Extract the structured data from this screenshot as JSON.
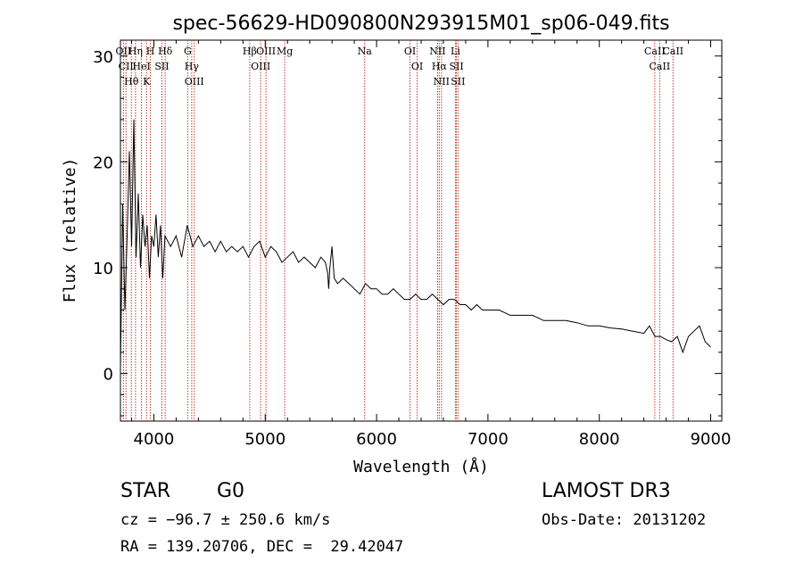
{
  "chart_data": {
    "type": "line",
    "title": "spec-56629-HD090800N293915M01_sp06-049.fits",
    "xlabel": "Wavelength (Å)",
    "ylabel": "Flux (relative)",
    "xlim": [
      3700,
      9100
    ],
    "ylim": [
      -4.5,
      31.5
    ],
    "xticks": [
      4000,
      5000,
      6000,
      7000,
      8000,
      9000
    ],
    "yticks": [
      0,
      10,
      20,
      30
    ],
    "grid": false,
    "series": [
      {
        "name": "spectrum",
        "x": [
          3700,
          3720,
          3740,
          3760,
          3780,
          3800,
          3820,
          3840,
          3860,
          3880,
          3900,
          3920,
          3940,
          3960,
          3980,
          4000,
          4020,
          4040,
          4060,
          4080,
          4100,
          4150,
          4200,
          4250,
          4300,
          4350,
          4400,
          4450,
          4500,
          4550,
          4600,
          4650,
          4700,
          4750,
          4800,
          4850,
          4900,
          4950,
          5000,
          5050,
          5100,
          5150,
          5200,
          5250,
          5300,
          5350,
          5400,
          5450,
          5500,
          5540,
          5560,
          5570,
          5580,
          5600,
          5620,
          5650,
          5700,
          5750,
          5800,
          5850,
          5900,
          5950,
          6000,
          6050,
          6100,
          6150,
          6200,
          6250,
          6300,
          6350,
          6400,
          6450,
          6500,
          6550,
          6600,
          6650,
          6700,
          6750,
          6800,
          6850,
          6900,
          6950,
          7000,
          7100,
          7200,
          7300,
          7400,
          7500,
          7600,
          7700,
          7800,
          7900,
          8000,
          8100,
          8200,
          8300,
          8400,
          8450,
          8500,
          8550,
          8600,
          8650,
          8700,
          8750,
          8800,
          8850,
          8900,
          8950,
          9000
        ],
        "y": [
          0.5,
          16,
          6,
          13,
          21,
          12,
          24,
          11,
          17,
          10,
          15,
          12,
          14,
          9,
          13,
          12,
          15,
          11,
          14,
          9,
          13,
          12,
          13,
          11,
          14,
          12,
          13,
          12,
          12.5,
          11.5,
          12.5,
          11.5,
          12,
          11.5,
          12,
          11,
          12,
          12.5,
          11,
          12,
          11.5,
          10.5,
          11,
          11.5,
          10.5,
          11,
          10.5,
          10,
          11,
          10.5,
          9.5,
          8,
          10,
          12,
          9,
          8.5,
          9,
          8.5,
          8,
          7.5,
          8.5,
          8,
          8,
          7.5,
          7.5,
          8,
          7.5,
          7,
          7,
          7.5,
          7,
          7,
          7.5,
          7,
          6.5,
          7,
          7,
          6.5,
          6.5,
          6,
          6.5,
          6,
          6,
          6,
          5.5,
          5.5,
          5.5,
          5,
          5,
          5,
          4.8,
          4.5,
          4.5,
          4.3,
          4.2,
          4,
          3.8,
          4.5,
          3.5,
          3.5,
          3.2,
          3,
          3.5,
          2,
          3.5,
          4,
          4.5,
          3,
          2.5
        ]
      }
    ],
    "line_markers": [
      {
        "label": "Hβ",
        "x": 4861
      },
      {
        "label": "OIII",
        "x": 4959
      },
      {
        "label": "OIII",
        "x": 5007
      },
      {
        "label": "Mg",
        "x": 5175
      },
      {
        "label": "Na",
        "x": 5893
      },
      {
        "label": "OI",
        "x": 6300
      },
      {
        "label": "OI",
        "x": 6364
      },
      {
        "label": "NII",
        "x": 6548
      },
      {
        "label": "Hα",
        "x": 6563
      },
      {
        "label": "NII",
        "x": 6583
      },
      {
        "label": "Li",
        "x": 6708
      },
      {
        "label": "SII",
        "x": 6717
      },
      {
        "label": "SII",
        "x": 6731
      },
      {
        "label": "CaII",
        "x": 8498
      },
      {
        "label": "CaII",
        "x": 8542
      },
      {
        "label": "CaII",
        "x": 8662
      },
      {
        "label": "G",
        "x": 4304
      },
      {
        "label": "Hγ",
        "x": 4340
      },
      {
        "label": "OIII",
        "x": 4363
      },
      {
        "label": "Hδ",
        "x": 4102
      },
      {
        "label": "SII",
        "x": 4072
      },
      {
        "label": "H",
        "x": 3969
      },
      {
        "label": "K",
        "x": 3934
      },
      {
        "label": "HeI",
        "x": 3889
      },
      {
        "label": "Hη",
        "x": 3835
      },
      {
        "label": "Hθ",
        "x": 3798
      },
      {
        "label": "OII",
        "x": 3727
      },
      {
        "label": "CII",
        "x": 3750
      }
    ]
  },
  "info": {
    "class": "STAR",
    "subclass": "G0",
    "survey": "LAMOST DR3",
    "redshift": "cz = −96.7 ± 250.6 km/s",
    "obs_date": "Obs-Date: 20131202",
    "coords": "RA = 139.20706, DEC =  29.42047"
  }
}
